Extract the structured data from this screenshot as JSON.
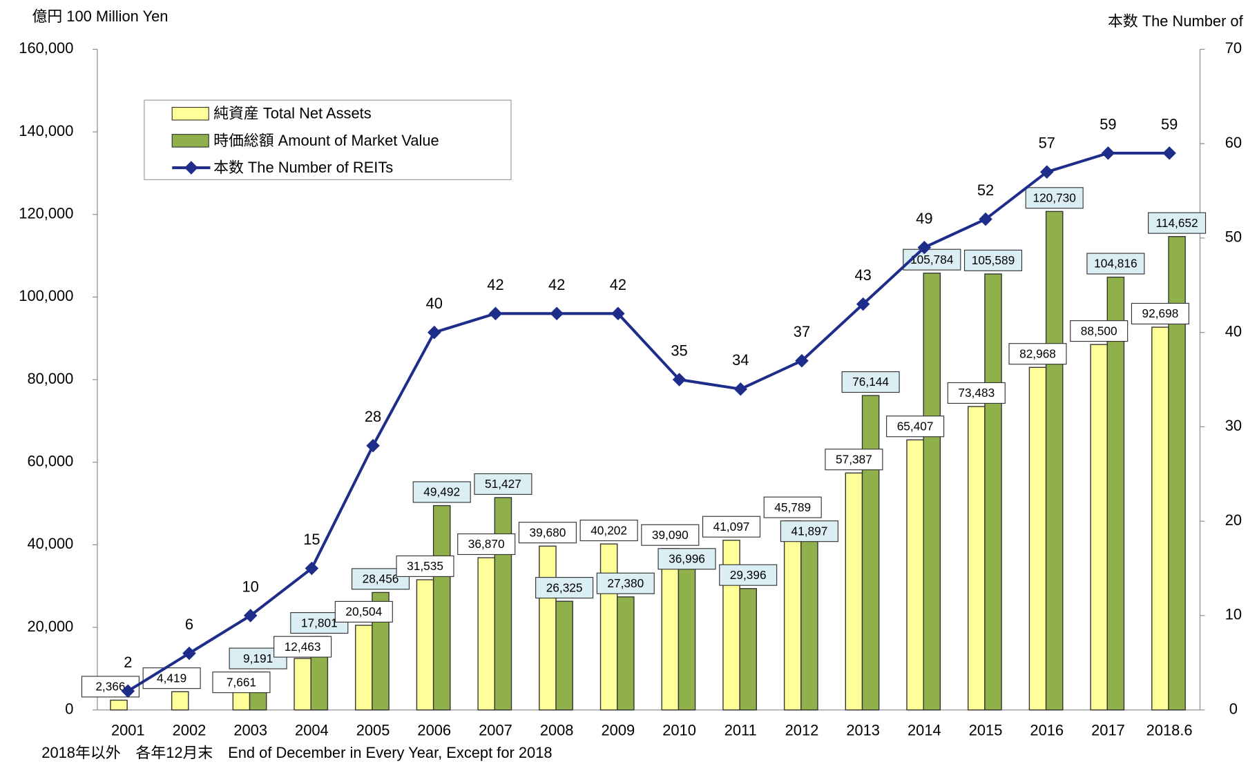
{
  "chart_data": {
    "type": "bar_line",
    "y_label": "億円 100 Million Yen",
    "y2_label": "本数 The Number of",
    "note": "2018年以外　各年12月末　End  of December in Every Year, Except for 2018",
    "categories": [
      "2001",
      "2002",
      "2003",
      "2004",
      "2005",
      "2006",
      "2007",
      "2008",
      "2009",
      "2010",
      "2011",
      "2012",
      "2013",
      "2014",
      "2015",
      "2016",
      "2017",
      "2018.6"
    ],
    "series": [
      {
        "name": "純資産 Total Net Assets",
        "type": "bar",
        "color": "#ffff99",
        "values": [
          2366,
          4419,
          7661,
          12463,
          20504,
          31535,
          36870,
          39680,
          40202,
          39090,
          41097,
          45789,
          57387,
          65407,
          73483,
          82968,
          88500,
          92698
        ],
        "value_labels": [
          "2,366",
          "4,419",
          "7,661",
          "12,463",
          "20,504",
          "31,535",
          "36,870",
          "39,680",
          "40,202",
          "39,090",
          "41,097",
          "45,789",
          "57,387",
          "65,407",
          "73,483",
          "82,968",
          "88,500",
          "92,698"
        ]
      },
      {
        "name": "時価総額 Amount of Market Value",
        "type": "bar",
        "color": "#8fb04a",
        "values": [
          null,
          null,
          9191,
          17801,
          28456,
          49492,
          51427,
          26325,
          27380,
          36996,
          29396,
          41897,
          76144,
          105784,
          105589,
          120730,
          104816,
          114652
        ],
        "value_labels": [
          null,
          null,
          "9,191",
          "17,801",
          "28,456",
          "49,492",
          "51,427",
          "26,325",
          "27,380",
          "36,996",
          "29,396",
          "41,897",
          "76,144",
          "105,784",
          "105,589",
          "120,730",
          "104,816",
          "114,652"
        ]
      },
      {
        "name": "本数 The Number of REITs",
        "type": "line",
        "axis": "y2",
        "color": "#1f2d8a",
        "values": [
          2,
          6,
          10,
          15,
          28,
          40,
          42,
          42,
          42,
          35,
          34,
          37,
          43,
          49,
          52,
          57,
          59,
          59
        ]
      }
    ],
    "ylim": [
      0,
      160000
    ],
    "yticks": [
      0,
      {
        "value": 20000,
        "label": "20,000"
      },
      {
        "value": 40000,
        "label": "40,000"
      },
      {
        "value": 60000,
        "label": "60,000"
      },
      {
        "value": 80000,
        "label": "80,000"
      },
      {
        "value": 100000,
        "label": "100,000"
      },
      {
        "value": 120000,
        "label": "120,000"
      },
      {
        "value": 140000,
        "label": "140,000"
      },
      {
        "value": 160000,
        "label": "160,000"
      }
    ],
    "y2lim": [
      0,
      70
    ],
    "y2ticks": [
      0,
      10,
      20,
      30,
      40,
      50,
      60,
      70
    ],
    "grid": false
  }
}
